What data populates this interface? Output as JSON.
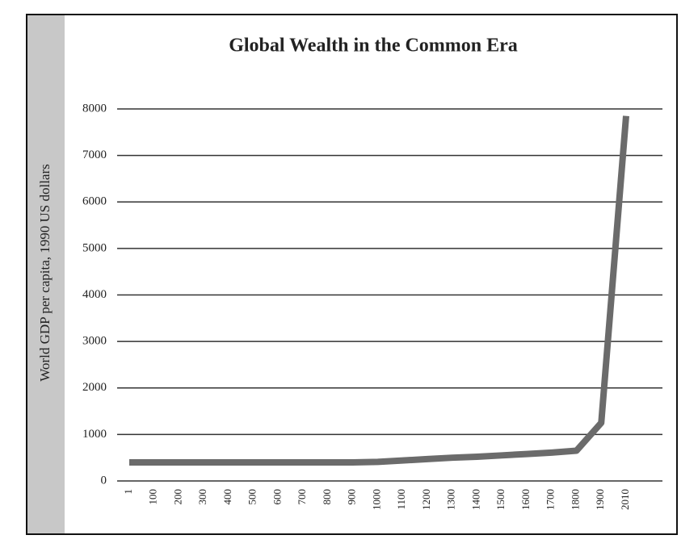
{
  "chart_data": {
    "type": "line",
    "title": "Global Wealth in the Common Era",
    "y_label": "World GDP per capita, 1990 US dollars",
    "categories": [
      "1",
      "100",
      "200",
      "300",
      "400",
      "500",
      "600",
      "700",
      "800",
      "900",
      "1000",
      "1100",
      "1200",
      "1300",
      "1400",
      "1500",
      "1600",
      "1700",
      "1800",
      "1900",
      "2010"
    ],
    "values": [
      400,
      400,
      400,
      400,
      400,
      400,
      400,
      400,
      400,
      400,
      410,
      440,
      470,
      500,
      520,
      550,
      580,
      610,
      650,
      1250,
      7850
    ],
    "color": "#6b6b6b",
    "ylim": [
      0,
      8000
    ],
    "yticks": [
      0,
      1000,
      2000,
      3000,
      4000,
      5000,
      6000,
      7000,
      8000
    ],
    "grid": true
  }
}
